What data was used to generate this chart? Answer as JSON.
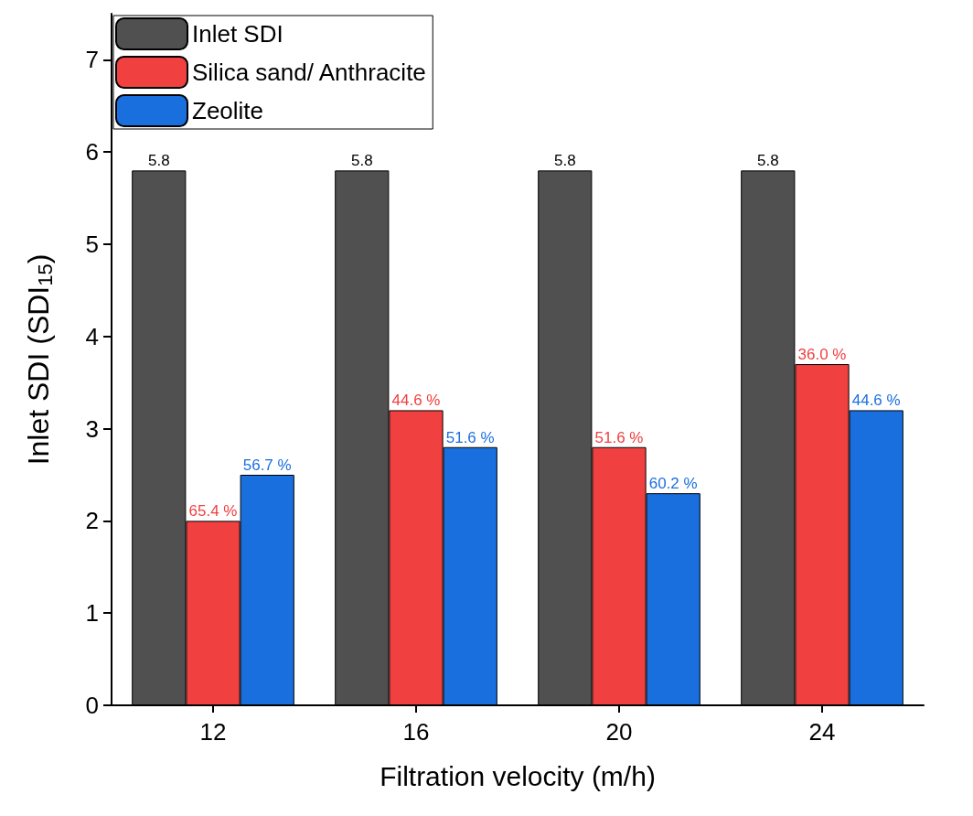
{
  "chart_data": {
    "type": "bar",
    "xlabel": "Filtration velocity (m/h)",
    "ylabel": "Inlet SDI (SDI$_{15}$)",
    "categories": [
      "12",
      "16",
      "20",
      "24"
    ],
    "series": [
      {
        "name": "Inlet SDI",
        "color": "#505050",
        "values": [
          5.8,
          5.8,
          5.8,
          5.8
        ],
        "value_labels": [
          "5.8",
          "5.8",
          "5.8",
          "5.8"
        ]
      },
      {
        "name": "Silica sand/ Anthracite",
        "color": "#f04040",
        "values": [
          2.0,
          3.2,
          2.8,
          3.7
        ]
      },
      {
        "name": "Zeolite",
        "color": "#1a6fdf",
        "values": [
          2.5,
          2.8,
          2.3,
          3.2
        ]
      }
    ],
    "annotations": [
      {
        "text": "65.4 %",
        "x": "12",
        "y": 2.0
      },
      "56.7 %",
      {
        "text": "44.6 %",
        "x": "16",
        "y": 3.2
      },
      "51.6 %",
      {
        "text": "51.6 %",
        "x": "20",
        "y": 2.8
      },
      "60.2 %",
      {
        "text": "36.0 %",
        "x": "24",
        "y": 3.7
      },
      "44.6 %"
    ],
    "ylim": [
      0,
      7.5
    ],
    "yticks": [
      0,
      1,
      2,
      3,
      4,
      5,
      6,
      7
    ],
    "grid": false,
    "legend": "top left"
  }
}
